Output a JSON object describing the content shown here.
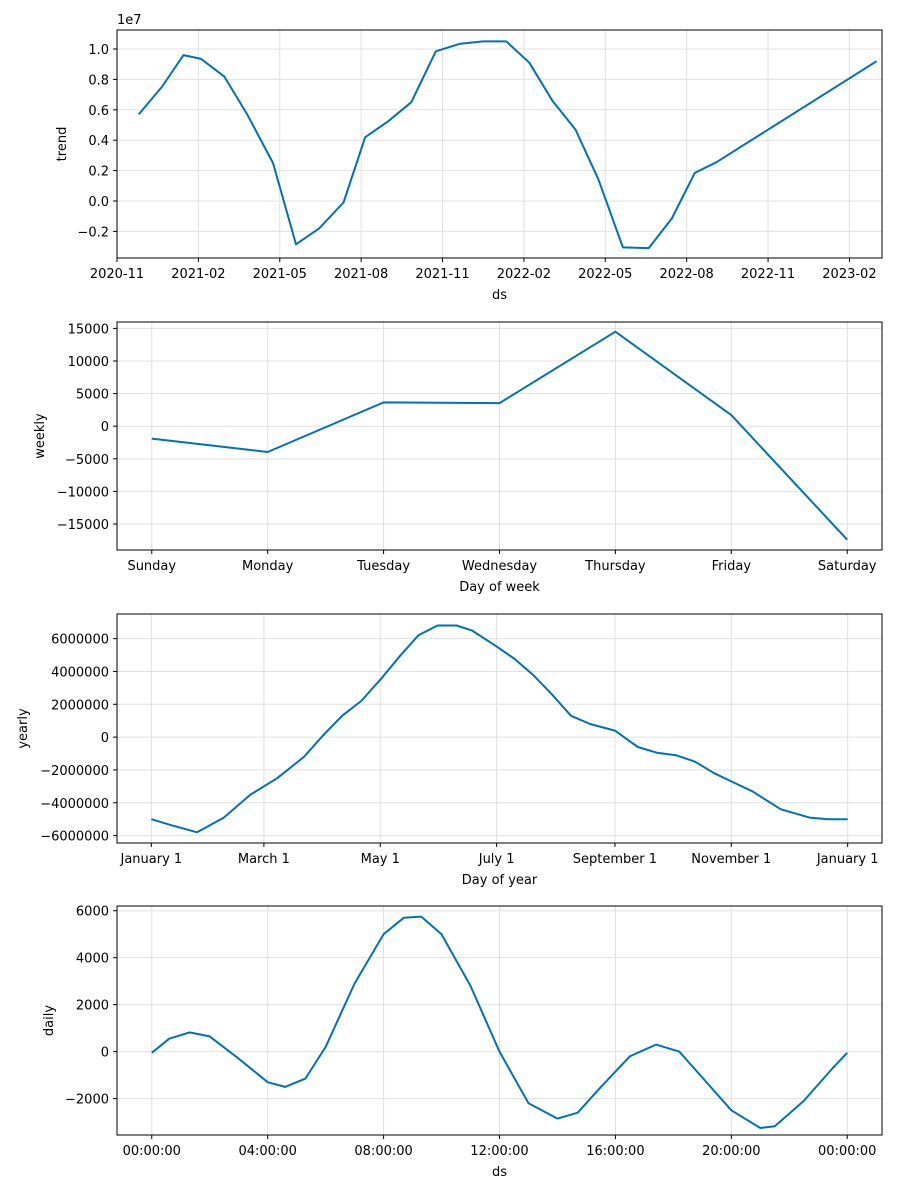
{
  "chart_data": [
    {
      "type": "line",
      "ylabel": "trend",
      "xlabel": "ds",
      "y_offset_text": "1e7",
      "line_color": "#0072B2",
      "grid": true,
      "xlim": [
        0,
        28.2
      ],
      "ylim": [
        -3.75,
        11.25
      ],
      "xticks": [
        {
          "v": 0,
          "label": "2020-11"
        },
        {
          "v": 3,
          "label": "2021-02"
        },
        {
          "v": 6,
          "label": "2021-05"
        },
        {
          "v": 9,
          "label": "2021-08"
        },
        {
          "v": 12,
          "label": "2021-11"
        },
        {
          "v": 15,
          "label": "2022-02"
        },
        {
          "v": 18,
          "label": "2022-05"
        },
        {
          "v": 21,
          "label": "2022-08"
        },
        {
          "v": 24,
          "label": "2022-11"
        },
        {
          "v": 27,
          "label": "2023-02"
        }
      ],
      "yticks": [
        {
          "v": -2,
          "label": "−0.2"
        },
        {
          "v": 0,
          "label": "0.0"
        },
        {
          "v": 2,
          "label": "0.2"
        },
        {
          "v": 4,
          "label": "0.4"
        },
        {
          "v": 6,
          "label": "0.6"
        },
        {
          "v": 8,
          "label": "0.8"
        },
        {
          "v": 10,
          "label": "1.0"
        }
      ],
      "x": [
        0.8,
        1.65,
        2.45,
        3.1,
        3.95,
        4.8,
        5.75,
        6.6,
        7.45,
        8.35,
        9.15,
        10.0,
        10.85,
        11.75,
        12.65,
        13.5,
        14.35,
        15.2,
        16.05,
        16.9,
        17.75,
        18.65,
        19.6,
        20.45,
        21.3,
        22.1,
        28.0
      ],
      "y": [
        5.7,
        7.5,
        9.6,
        9.35,
        8.2,
        5.7,
        2.5,
        -2.85,
        -1.8,
        -0.1,
        4.2,
        5.25,
        6.5,
        9.85,
        10.35,
        10.5,
        10.5,
        9.1,
        6.6,
        4.7,
        1.4,
        -3.05,
        -3.1,
        -1.15,
        1.85,
        2.55,
        9.2
      ]
    },
    {
      "type": "line",
      "ylabel": "weekly",
      "xlabel": "Day of week",
      "line_color": "#0072B2",
      "grid": true,
      "xlim": [
        -0.3,
        6.3
      ],
      "ylim": [
        -18980,
        15980
      ],
      "xticks": [
        {
          "v": 0,
          "label": "Sunday"
        },
        {
          "v": 1,
          "label": "Monday"
        },
        {
          "v": 2,
          "label": "Tuesday"
        },
        {
          "v": 3,
          "label": "Wednesday"
        },
        {
          "v": 4,
          "label": "Thursday"
        },
        {
          "v": 5,
          "label": "Friday"
        },
        {
          "v": 6,
          "label": "Saturday"
        }
      ],
      "yticks": [
        {
          "v": -15000,
          "label": "−15000"
        },
        {
          "v": -10000,
          "label": "−10000"
        },
        {
          "v": -5000,
          "label": "−5000"
        },
        {
          "v": 0,
          "label": "0"
        },
        {
          "v": 5000,
          "label": "5000"
        },
        {
          "v": 10000,
          "label": "10000"
        },
        {
          "v": 15000,
          "label": "15000"
        }
      ],
      "x": [
        0,
        1,
        2,
        3,
        4,
        5,
        6
      ],
      "y": [
        -1900,
        -3950,
        3650,
        3550,
        14500,
        1700,
        -17400
      ]
    },
    {
      "type": "line",
      "ylabel": "yearly",
      "xlabel": "Day of year",
      "line_color": "#0072B2",
      "grid": true,
      "xlim": [
        -18,
        383
      ],
      "ylim": [
        -6450000,
        7500000
      ],
      "xticks": [
        {
          "v": 0,
          "label": "January 1"
        },
        {
          "v": 59,
          "label": "March 1"
        },
        {
          "v": 120,
          "label": "May 1"
        },
        {
          "v": 181,
          "label": "July 1"
        },
        {
          "v": 243,
          "label": "September 1"
        },
        {
          "v": 304,
          "label": "November 1"
        },
        {
          "v": 365,
          "label": "January 1"
        }
      ],
      "yticks": [
        {
          "v": -6000000,
          "label": "−6000000"
        },
        {
          "v": -4000000,
          "label": "−4000000"
        },
        {
          "v": -2000000,
          "label": "−2000000"
        },
        {
          "v": 0,
          "label": "0"
        },
        {
          "v": 2000000,
          "label": "2000000"
        },
        {
          "v": 4000000,
          "label": "4000000"
        },
        {
          "v": 6000000,
          "label": "6000000"
        }
      ],
      "x": [
        0,
        10,
        24,
        38,
        52,
        66,
        80,
        90,
        100,
        110,
        120,
        130,
        140,
        150,
        160,
        168,
        180,
        190,
        200,
        210,
        220,
        230,
        243,
        255,
        265,
        275,
        285,
        295,
        304,
        315,
        330,
        345,
        355,
        365
      ],
      "y": [
        -5000000,
        -5350000,
        -5800000,
        -4900000,
        -3500000,
        -2500000,
        -1200000,
        100000,
        1300000,
        2200000,
        3500000,
        4900000,
        6200000,
        6800000,
        6800000,
        6500000,
        5600000,
        4800000,
        3800000,
        2600000,
        1300000,
        800000,
        400000,
        -600000,
        -950000,
        -1100000,
        -1500000,
        -2200000,
        -2700000,
        -3300000,
        -4400000,
        -4900000,
        -5000000,
        -5000000
      ]
    },
    {
      "type": "line",
      "ylabel": "daily",
      "xlabel": "ds",
      "line_color": "#0072B2",
      "grid": true,
      "xlim": [
        -1.2,
        25.2
      ],
      "ylim": [
        -3550,
        6200
      ],
      "xticks": [
        {
          "v": 0,
          "label": "00:00:00"
        },
        {
          "v": 4,
          "label": "04:00:00"
        },
        {
          "v": 8,
          "label": "08:00:00"
        },
        {
          "v": 12,
          "label": "12:00:00"
        },
        {
          "v": 16,
          "label": "16:00:00"
        },
        {
          "v": 20,
          "label": "20:00:00"
        },
        {
          "v": 24,
          "label": "00:00:00"
        }
      ],
      "yticks": [
        {
          "v": -2000,
          "label": "−2000"
        },
        {
          "v": 0,
          "label": "0"
        },
        {
          "v": 2000,
          "label": "2000"
        },
        {
          "v": 4000,
          "label": "4000"
        },
        {
          "v": 6000,
          "label": "6000"
        }
      ],
      "x": [
        0,
        0.6,
        1.3,
        2.0,
        3.0,
        4.0,
        4.6,
        5.3,
        6.0,
        7.0,
        8.0,
        8.7,
        9.3,
        10.0,
        11.0,
        12.0,
        13.0,
        14.0,
        14.7,
        15.5,
        16.5,
        17.4,
        18.2,
        19.0,
        20.0,
        21.0,
        21.5,
        22.5,
        23.5,
        24.0
      ],
      "y": [
        -50,
        550,
        820,
        650,
        -300,
        -1300,
        -1500,
        -1150,
        200,
        2900,
        5000,
        5700,
        5750,
        5000,
        2800,
        0,
        -2200,
        -2850,
        -2600,
        -1500,
        -200,
        300,
        0,
        -1100,
        -2500,
        -3250,
        -3180,
        -2100,
        -700,
        -50
      ]
    }
  ]
}
